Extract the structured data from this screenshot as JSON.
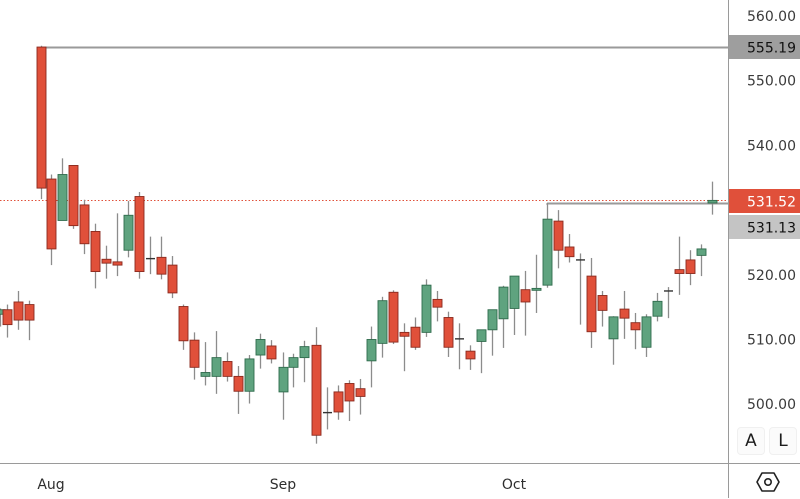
{
  "chart_data": {
    "type": "candlestick",
    "title": "",
    "xlabel": "",
    "ylabel": "",
    "ylim": [
      495.5,
      562.5
    ],
    "y_ticks": [
      "560.00",
      "550.00",
      "540.00",
      "520.00",
      "510.00",
      "500.00"
    ],
    "y_tick_values": [
      560,
      550,
      540,
      520,
      510,
      500
    ],
    "x_ticks": [
      {
        "label": "Aug",
        "x": 51
      },
      {
        "label": "Sep",
        "x": 283
      },
      {
        "label": "Oct",
        "x": 514
      }
    ],
    "price_labels": [
      {
        "value": "555.19",
        "style": "grey-line",
        "color": "#9e9e9e"
      },
      {
        "value": "531.52",
        "style": "current-price",
        "color": "#e0503a"
      },
      {
        "value": "531.13",
        "style": "grey-line",
        "color": "#c4c4c4"
      }
    ],
    "horizontal_lines": [
      {
        "price": 555.19,
        "from_x": 41,
        "color": "#9a9a9a",
        "style": "solid"
      },
      {
        "price": 531.52,
        "from_x": 0,
        "color": "#e0503a",
        "style": "dotted"
      },
      {
        "price": 531.13,
        "from_x": 547,
        "color": "#9a9a9a",
        "style": "solid"
      }
    ],
    "colors": {
      "up": "#5fa37f",
      "down": "#e0503a",
      "up_border": "#2f6b4c",
      "down_border": "#8a2a1e",
      "wick": "#8c8c8c"
    },
    "candles": [
      {
        "x": 0,
        "o": 513.9,
        "h": 514.8,
        "l": 512.0,
        "c": 514.6
      },
      {
        "x": 7,
        "o": 514.6,
        "h": 515.4,
        "l": 510.3,
        "c": 512.3
      },
      {
        "x": 18,
        "o": 515.8,
        "h": 517.5,
        "l": 511.5,
        "c": 513.0
      },
      {
        "x": 29,
        "o": 515.4,
        "h": 516.0,
        "l": 509.9,
        "c": 513.0
      },
      {
        "x": 41,
        "o": 555.2,
        "h": 555.4,
        "l": 531.7,
        "c": 533.4
      },
      {
        "x": 51,
        "o": 534.8,
        "h": 535.5,
        "l": 521.5,
        "c": 524.0
      },
      {
        "x": 62,
        "o": 528.4,
        "h": 538.0,
        "l": 528.4,
        "c": 535.5
      },
      {
        "x": 73,
        "o": 536.9,
        "h": 536.9,
        "l": 527.1,
        "c": 527.6
      },
      {
        "x": 84,
        "o": 530.8,
        "h": 531.6,
        "l": 523.2,
        "c": 524.8
      },
      {
        "x": 95,
        "o": 526.7,
        "h": 527.9,
        "l": 517.9,
        "c": 520.5
      },
      {
        "x": 106,
        "o": 522.4,
        "h": 524.5,
        "l": 519.4,
        "c": 521.8
      },
      {
        "x": 117,
        "o": 522.0,
        "h": 529.5,
        "l": 519.8,
        "c": 521.5
      },
      {
        "x": 128,
        "o": 523.8,
        "h": 531.4,
        "l": 522.7,
        "c": 529.2
      },
      {
        "x": 139,
        "o": 532.1,
        "h": 532.8,
        "l": 519.4,
        "c": 520.5
      },
      {
        "x": 150,
        "o": 522.5,
        "h": 525.9,
        "l": 520.1,
        "c": 522.4
      },
      {
        "x": 161,
        "o": 522.7,
        "h": 525.9,
        "l": 519.3,
        "c": 520.1
      },
      {
        "x": 172,
        "o": 521.5,
        "h": 522.9,
        "l": 516.4,
        "c": 517.2
      },
      {
        "x": 183,
        "o": 515.1,
        "h": 515.4,
        "l": 508.4,
        "c": 509.8
      },
      {
        "x": 194,
        "o": 509.9,
        "h": 511.1,
        "l": 503.8,
        "c": 505.7
      },
      {
        "x": 205,
        "o": 504.3,
        "h": 509.6,
        "l": 502.9,
        "c": 504.9
      },
      {
        "x": 216,
        "o": 504.3,
        "h": 511.3,
        "l": 501.6,
        "c": 507.2
      },
      {
        "x": 227,
        "o": 506.6,
        "h": 508.0,
        "l": 503.5,
        "c": 504.3
      },
      {
        "x": 238,
        "o": 504.3,
        "h": 505.9,
        "l": 498.5,
        "c": 502.0
      },
      {
        "x": 249,
        "o": 502.0,
        "h": 507.6,
        "l": 500.1,
        "c": 507.0
      },
      {
        "x": 260,
        "o": 507.6,
        "h": 510.9,
        "l": 505.5,
        "c": 510.0
      },
      {
        "x": 271,
        "o": 509.0,
        "h": 509.9,
        "l": 506.3,
        "c": 507.0
      },
      {
        "x": 283,
        "o": 501.9,
        "h": 508.0,
        "l": 497.6,
        "c": 505.7
      },
      {
        "x": 293,
        "o": 505.7,
        "h": 507.8,
        "l": 502.6,
        "c": 507.2
      },
      {
        "x": 304,
        "o": 507.2,
        "h": 509.8,
        "l": 503.4,
        "c": 508.9
      },
      {
        "x": 316,
        "o": 509.1,
        "h": 511.9,
        "l": 493.9,
        "c": 495.2
      },
      {
        "x": 327,
        "o": 498.7,
        "h": 502.6,
        "l": 496.1,
        "c": 498.6
      },
      {
        "x": 338,
        "o": 501.9,
        "h": 502.9,
        "l": 497.6,
        "c": 498.8
      },
      {
        "x": 349,
        "o": 503.2,
        "h": 503.7,
        "l": 497.4,
        "c": 500.5
      },
      {
        "x": 360,
        "o": 502.4,
        "h": 503.9,
        "l": 498.4,
        "c": 501.2
      },
      {
        "x": 371,
        "o": 506.7,
        "h": 512.0,
        "l": 502.6,
        "c": 510.0
      },
      {
        "x": 382,
        "o": 509.4,
        "h": 516.6,
        "l": 507.2,
        "c": 516.0
      },
      {
        "x": 393,
        "o": 517.3,
        "h": 517.6,
        "l": 509.3,
        "c": 509.6
      },
      {
        "x": 404,
        "o": 511.1,
        "h": 512.5,
        "l": 505.1,
        "c": 510.5
      },
      {
        "x": 415,
        "o": 511.9,
        "h": 513.4,
        "l": 508.4,
        "c": 508.8
      },
      {
        "x": 426,
        "o": 511.1,
        "h": 519.3,
        "l": 510.4,
        "c": 518.4
      },
      {
        "x": 437,
        "o": 516.2,
        "h": 517.5,
        "l": 512.8,
        "c": 515.0
      },
      {
        "x": 448,
        "o": 513.4,
        "h": 514.3,
        "l": 507.3,
        "c": 508.8
      },
      {
        "x": 459,
        "o": 510.1,
        "h": 512.5,
        "l": 505.4,
        "c": 510.1
      },
      {
        "x": 470,
        "o": 508.2,
        "h": 509.1,
        "l": 505.3,
        "c": 507.0
      },
      {
        "x": 481,
        "o": 509.7,
        "h": 511.5,
        "l": 504.8,
        "c": 511.5
      },
      {
        "x": 492,
        "o": 511.5,
        "h": 514.6,
        "l": 507.5,
        "c": 514.6
      },
      {
        "x": 503,
        "o": 513.2,
        "h": 518.3,
        "l": 508.7,
        "c": 518.1
      },
      {
        "x": 514,
        "o": 514.8,
        "h": 519.8,
        "l": 510.7,
        "c": 519.8
      },
      {
        "x": 525,
        "o": 517.7,
        "h": 520.6,
        "l": 510.6,
        "c": 515.8
      },
      {
        "x": 536,
        "o": 517.6,
        "h": 523.1,
        "l": 514.1,
        "c": 517.9
      },
      {
        "x": 547,
        "o": 518.4,
        "h": 531.1,
        "l": 518.0,
        "c": 528.6
      },
      {
        "x": 558,
        "o": 528.3,
        "h": 530.0,
        "l": 521.0,
        "c": 523.8
      },
      {
        "x": 569,
        "o": 524.3,
        "h": 526.3,
        "l": 521.9,
        "c": 522.8
      },
      {
        "x": 580,
        "o": 522.3,
        "h": 523.3,
        "l": 512.3,
        "c": 522.3
      },
      {
        "x": 591,
        "o": 519.8,
        "h": 522.6,
        "l": 508.7,
        "c": 511.2
      },
      {
        "x": 602,
        "o": 516.8,
        "h": 517.5,
        "l": 512.0,
        "c": 514.5
      },
      {
        "x": 613,
        "o": 510.1,
        "h": 513.6,
        "l": 506.1,
        "c": 513.5
      },
      {
        "x": 624,
        "o": 514.7,
        "h": 517.5,
        "l": 510.1,
        "c": 513.3
      },
      {
        "x": 635,
        "o": 512.6,
        "h": 514.1,
        "l": 508.5,
        "c": 511.5
      },
      {
        "x": 646,
        "o": 508.8,
        "h": 513.9,
        "l": 507.3,
        "c": 513.5
      },
      {
        "x": 657,
        "o": 513.6,
        "h": 517.2,
        "l": 512.8,
        "c": 515.9
      },
      {
        "x": 668,
        "o": 517.4,
        "h": 518.1,
        "l": 513.3,
        "c": 517.5
      },
      {
        "x": 679,
        "o": 520.8,
        "h": 525.9,
        "l": 516.9,
        "c": 520.2
      },
      {
        "x": 690,
        "o": 522.3,
        "h": 523.8,
        "l": 518.4,
        "c": 520.2
      },
      {
        "x": 701,
        "o": 523.0,
        "h": 524.7,
        "l": 519.8,
        "c": 524.0
      },
      {
        "x": 712,
        "o": 531.1,
        "h": 534.4,
        "l": 529.3,
        "c": 531.5
      }
    ]
  },
  "toolbar": {
    "auto_label": "A",
    "log_label": "L",
    "settings_icon": "settings-hexagon-icon"
  }
}
